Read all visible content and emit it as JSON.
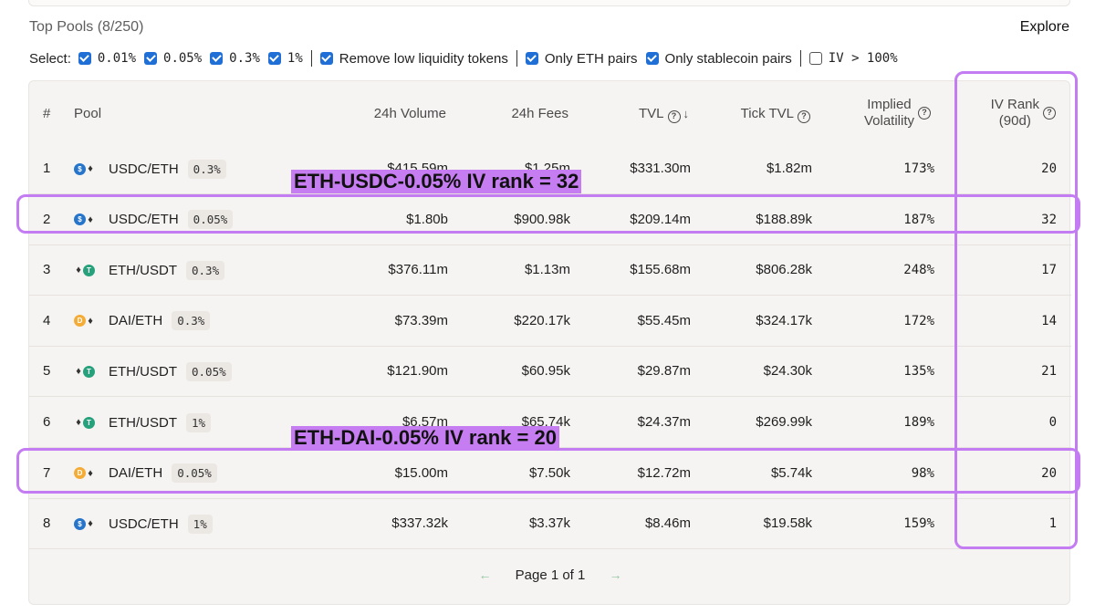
{
  "header": {
    "title": "Top Pools (8/250)",
    "explore_label": "Explore"
  },
  "filters": {
    "select_label": "Select:",
    "fee_options": [
      {
        "label": "0.01%",
        "checked": true
      },
      {
        "label": "0.05%",
        "checked": true
      },
      {
        "label": "0.3%",
        "checked": true
      },
      {
        "label": "1%",
        "checked": true
      }
    ],
    "toggles": [
      {
        "label": "Remove low liquidity tokens",
        "checked": true
      },
      {
        "label": "Only ETH pairs",
        "checked": true
      },
      {
        "label": "Only stablecoin pairs",
        "checked": true
      },
      {
        "label": "IV > 100%",
        "checked": false
      }
    ]
  },
  "table": {
    "columns": {
      "rank": "#",
      "pool": "Pool",
      "volume": "24h Volume",
      "fees": "24h Fees",
      "tvl": "TVL",
      "tick_tvl": "Tick TVL",
      "iv_line1": "Implied",
      "iv_line2": "Volatility",
      "ivr_line1": "IV Rank",
      "ivr_line2": "(90d)"
    },
    "sort_icon": "arrow-down-icon",
    "rows": [
      {
        "rank": "1",
        "pair": "USDC/ETH",
        "tokens": [
          "usdc",
          "eth"
        ],
        "fee": "0.3%",
        "volume": "$415.59m",
        "fees": "$1.25m",
        "tvl": "$331.30m",
        "tick_tvl": "$1.82m",
        "iv": "173%",
        "ivr": "20"
      },
      {
        "rank": "2",
        "pair": "USDC/ETH",
        "tokens": [
          "usdc",
          "eth"
        ],
        "fee": "0.05%",
        "volume": "$1.80b",
        "fees": "$900.98k",
        "tvl": "$209.14m",
        "tick_tvl": "$188.89k",
        "iv": "187%",
        "ivr": "32"
      },
      {
        "rank": "3",
        "pair": "ETH/USDT",
        "tokens": [
          "eth",
          "usdt"
        ],
        "fee": "0.3%",
        "volume": "$376.11m",
        "fees": "$1.13m",
        "tvl": "$155.68m",
        "tick_tvl": "$806.28k",
        "iv": "248%",
        "ivr": "17"
      },
      {
        "rank": "4",
        "pair": "DAI/ETH",
        "tokens": [
          "dai",
          "eth"
        ],
        "fee": "0.3%",
        "volume": "$73.39m",
        "fees": "$220.17k",
        "tvl": "$55.45m",
        "tick_tvl": "$324.17k",
        "iv": "172%",
        "ivr": "14"
      },
      {
        "rank": "5",
        "pair": "ETH/USDT",
        "tokens": [
          "eth",
          "usdt"
        ],
        "fee": "0.05%",
        "volume": "$121.90m",
        "fees": "$60.95k",
        "tvl": "$29.87m",
        "tick_tvl": "$24.30k",
        "iv": "135%",
        "ivr": "21"
      },
      {
        "rank": "6",
        "pair": "ETH/USDT",
        "tokens": [
          "eth",
          "usdt"
        ],
        "fee": "1%",
        "volume": "$6.57m",
        "fees": "$65.74k",
        "tvl": "$24.37m",
        "tick_tvl": "$269.99k",
        "iv": "189%",
        "ivr": "0"
      },
      {
        "rank": "7",
        "pair": "DAI/ETH",
        "tokens": [
          "dai",
          "eth"
        ],
        "fee": "0.05%",
        "volume": "$15.00m",
        "fees": "$7.50k",
        "tvl": "$12.72m",
        "tick_tvl": "$5.74k",
        "iv": "98%",
        "ivr": "20"
      },
      {
        "rank": "8",
        "pair": "USDC/ETH",
        "tokens": [
          "usdc",
          "eth"
        ],
        "fee": "1%",
        "volume": "$337.32k",
        "fees": "$3.37k",
        "tvl": "$8.46m",
        "tick_tvl": "$19.58k",
        "iv": "159%",
        "ivr": "1"
      }
    ]
  },
  "pagination": {
    "label": "Page 1 of 1",
    "prev_icon": "arrow-left-icon",
    "next_icon": "arrow-right-icon"
  },
  "annotations": {
    "eth_usdc": "ETH-USDC-0.05% IV rank = 32",
    "eth_dai": "ETH-DAI-0.05% IV rank = 20",
    "highlight_color": "#c37cf2"
  },
  "colors": {
    "checkbox": "#1f6fd6",
    "usdc": "#2775ca",
    "usdt": "#26a17b",
    "dai": "#f5ac37",
    "pager_arrow": "#8fc59f"
  }
}
